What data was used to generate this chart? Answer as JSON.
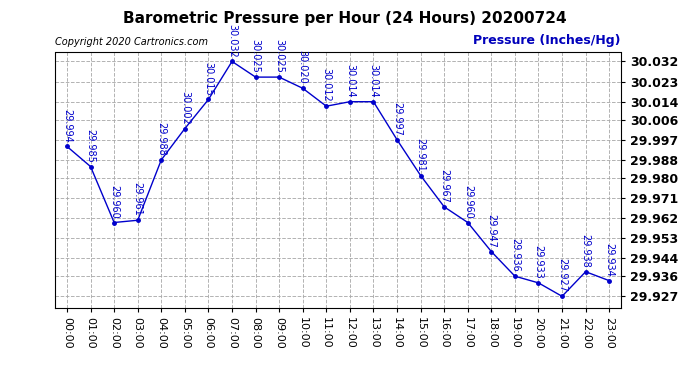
{
  "title": "Barometric Pressure per Hour (24 Hours) 20200724",
  "ylabel": "Pressure (Inches/Hg)",
  "copyright": "Copyright 2020 Cartronics.com",
  "hours": [
    "00:00",
    "01:00",
    "02:00",
    "03:00",
    "04:00",
    "05:00",
    "06:00",
    "07:00",
    "08:00",
    "09:00",
    "10:00",
    "11:00",
    "12:00",
    "13:00",
    "14:00",
    "15:00",
    "16:00",
    "17:00",
    "18:00",
    "19:00",
    "20:00",
    "21:00",
    "22:00",
    "23:00"
  ],
  "values": [
    29.994,
    29.985,
    29.96,
    29.961,
    29.988,
    30.002,
    30.015,
    30.032,
    30.025,
    30.025,
    30.02,
    30.012,
    30.014,
    30.014,
    29.997,
    29.981,
    29.967,
    29.96,
    29.947,
    29.936,
    29.933,
    29.927,
    29.938,
    29.934
  ],
  "yticks": [
    30.032,
    30.023,
    30.014,
    30.006,
    29.997,
    29.988,
    29.98,
    29.971,
    29.962,
    29.953,
    29.944,
    29.936,
    29.927
  ],
  "line_color": "#0000cc",
  "marker_color": "#0000cc",
  "grid_color": "#aaaaaa",
  "title_color": "#000000",
  "ylabel_color": "#0000bb",
  "copyright_color": "#000000",
  "bg_color": "#ffffff",
  "ylim_min": 29.922,
  "ylim_max": 30.036,
  "title_fontsize": 11,
  "label_fontsize": 8,
  "annotation_fontsize": 7,
  "copyright_fontsize": 7
}
